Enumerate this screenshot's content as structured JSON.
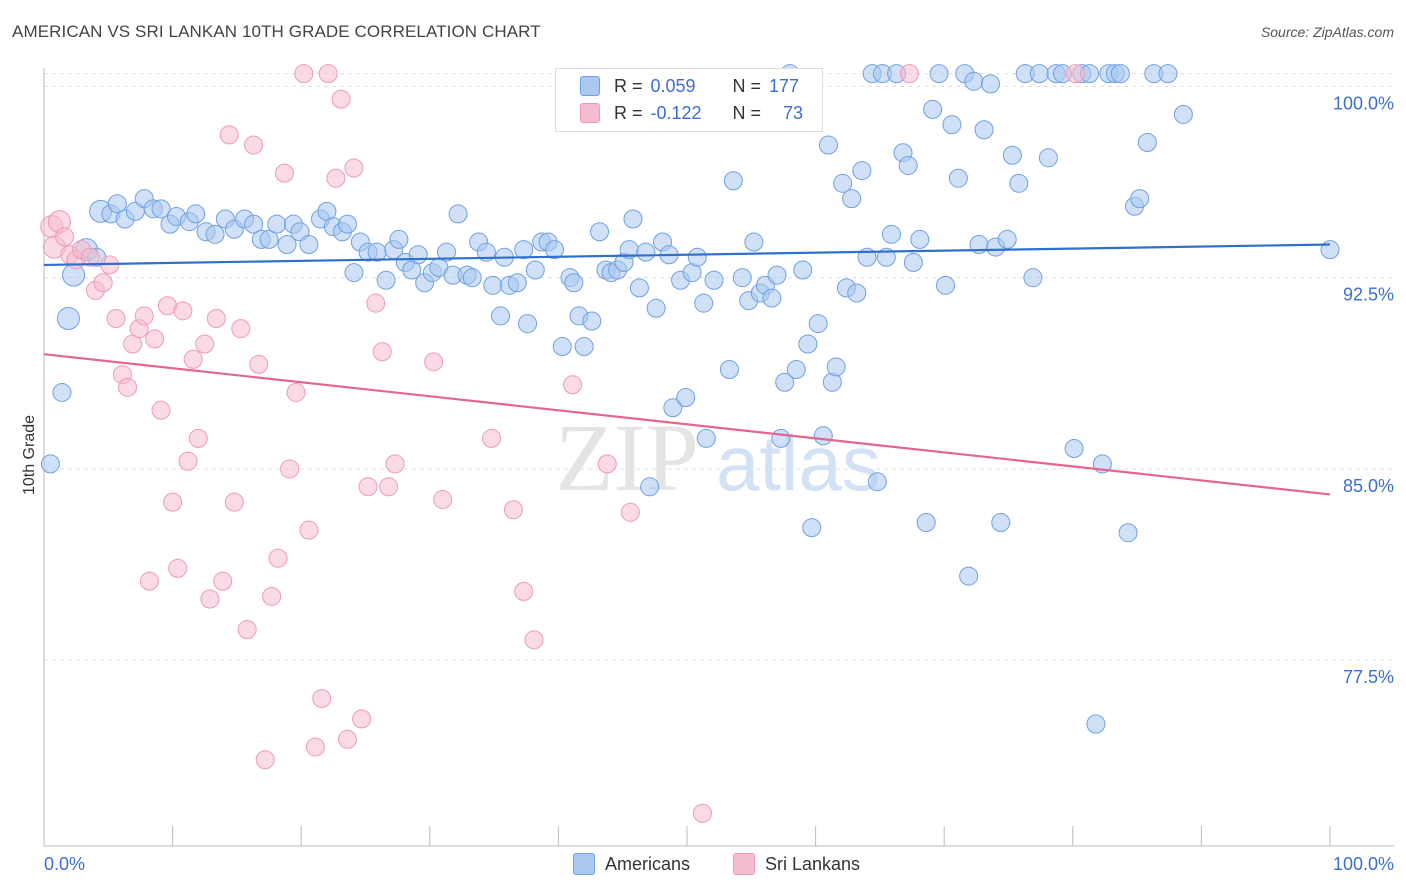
{
  "title": "AMERICAN VS SRI LANKAN 10TH GRADE CORRELATION CHART",
  "source": "Source: ZipAtlas.com",
  "legend": {
    "rows": [
      {
        "r_label": "R =",
        "r_value": "0.059",
        "n_label": "N =",
        "n_value": "177",
        "color": "#aac8f0"
      },
      {
        "r_label": "R =",
        "r_value": "-0.122",
        "n_label": "N =",
        "n_value": "73",
        "color": "#f6bccd"
      }
    ]
  },
  "bottom_legend": [
    "Americans",
    "Sri Lankans"
  ],
  "chart_data": {
    "type": "scatter",
    "ylabel": "10th Grade",
    "xlabel": "",
    "xlim": [
      0,
      100
    ],
    "ylim": [
      71,
      100.8
    ],
    "x_tick_labels": [
      "0.0%",
      "100.0%"
    ],
    "y_ticks": [
      77.5,
      85.0,
      92.5,
      100.0
    ],
    "y_tick_labels": [
      "77.5%",
      "85.0%",
      "92.5%",
      "100.0%"
    ],
    "grid": "horizontal dashed",
    "watermark": "ZIPatlas",
    "series": [
      {
        "name": "Americans",
        "color": "#6fa0e0",
        "fill": "#aac8f0",
        "trend": [
          [
            0,
            93.0
          ],
          [
            100,
            93.8
          ]
        ],
        "points": [
          [
            0.5,
            85.2
          ],
          [
            1.4,
            88.0
          ],
          [
            1.9,
            90.9
          ],
          [
            2.3,
            92.6
          ],
          [
            3.3,
            93.6
          ],
          [
            4.1,
            93.3
          ],
          [
            4.4,
            95.1
          ],
          [
            5.2,
            95.0
          ],
          [
            5.7,
            95.4
          ],
          [
            6.3,
            94.8
          ],
          [
            7.1,
            95.1
          ],
          [
            7.8,
            95.6
          ],
          [
            8.5,
            95.2
          ],
          [
            9.1,
            95.2
          ],
          [
            9.8,
            94.6
          ],
          [
            10.3,
            94.9
          ],
          [
            11.3,
            94.7
          ],
          [
            11.8,
            95.0
          ],
          [
            12.6,
            94.3
          ],
          [
            13.3,
            94.2
          ],
          [
            14.1,
            94.8
          ],
          [
            14.8,
            94.4
          ],
          [
            15.6,
            94.8
          ],
          [
            16.3,
            94.6
          ],
          [
            16.9,
            94.0
          ],
          [
            17.5,
            94.0
          ],
          [
            18.1,
            94.6
          ],
          [
            18.9,
            93.8
          ],
          [
            19.4,
            94.6
          ],
          [
            19.9,
            94.3
          ],
          [
            20.6,
            93.8
          ],
          [
            21.5,
            94.8
          ],
          [
            22.0,
            95.1
          ],
          [
            22.5,
            94.5
          ],
          [
            23.2,
            94.3
          ],
          [
            23.6,
            94.6
          ],
          [
            24.1,
            92.7
          ],
          [
            24.6,
            93.9
          ],
          [
            25.2,
            93.5
          ],
          [
            25.9,
            93.5
          ],
          [
            26.6,
            92.4
          ],
          [
            27.2,
            93.6
          ],
          [
            27.6,
            94.0
          ],
          [
            28.1,
            93.1
          ],
          [
            28.6,
            92.8
          ],
          [
            29.1,
            93.4
          ],
          [
            29.6,
            92.3
          ],
          [
            30.2,
            92.7
          ],
          [
            30.7,
            92.9
          ],
          [
            31.3,
            93.5
          ],
          [
            31.8,
            92.6
          ],
          [
            32.2,
            95.0
          ],
          [
            32.9,
            92.6
          ],
          [
            33.3,
            92.5
          ],
          [
            33.8,
            93.9
          ],
          [
            34.4,
            93.5
          ],
          [
            34.9,
            92.2
          ],
          [
            35.5,
            91.0
          ],
          [
            35.8,
            93.3
          ],
          [
            36.2,
            92.2
          ],
          [
            36.8,
            92.3
          ],
          [
            37.3,
            93.6
          ],
          [
            37.6,
            90.7
          ],
          [
            38.2,
            92.8
          ],
          [
            38.7,
            93.9
          ],
          [
            39.2,
            93.9
          ],
          [
            39.7,
            93.6
          ],
          [
            40.3,
            89.8
          ],
          [
            40.9,
            92.5
          ],
          [
            41.2,
            92.3
          ],
          [
            41.6,
            91.0
          ],
          [
            42.0,
            89.8
          ],
          [
            42.6,
            90.8
          ],
          [
            43.2,
            94.3
          ],
          [
            43.7,
            92.8
          ],
          [
            44.1,
            92.7
          ],
          [
            44.6,
            92.8
          ],
          [
            45.1,
            93.1
          ],
          [
            45.5,
            93.6
          ],
          [
            45.8,
            94.8
          ],
          [
            46.3,
            92.1
          ],
          [
            46.8,
            93.5
          ],
          [
            47.1,
            84.3
          ],
          [
            47.6,
            91.3
          ],
          [
            48.1,
            93.9
          ],
          [
            48.6,
            93.4
          ],
          [
            48.9,
            87.4
          ],
          [
            49.5,
            92.4
          ],
          [
            49.9,
            87.8
          ],
          [
            50.4,
            92.7
          ],
          [
            50.8,
            93.3
          ],
          [
            51.3,
            91.5
          ],
          [
            51.5,
            86.2
          ],
          [
            52.1,
            92.4
          ],
          [
            52.8,
            98.7
          ],
          [
            53.3,
            88.9
          ],
          [
            53.6,
            96.3
          ],
          [
            53.9,
            98.6
          ],
          [
            54.3,
            92.5
          ],
          [
            54.8,
            91.6
          ],
          [
            55.2,
            93.9
          ],
          [
            55.7,
            91.9
          ],
          [
            56.1,
            92.2
          ],
          [
            56.6,
            91.7
          ],
          [
            57.0,
            92.6
          ],
          [
            57.3,
            86.2
          ],
          [
            57.6,
            88.4
          ],
          [
            58.0,
            100.5
          ],
          [
            58.5,
            88.9
          ],
          [
            59.0,
            92.8
          ],
          [
            59.4,
            89.9
          ],
          [
            59.7,
            82.7
          ],
          [
            60.2,
            90.7
          ],
          [
            60.6,
            86.3
          ],
          [
            61.0,
            97.7
          ],
          [
            61.3,
            88.4
          ],
          [
            61.6,
            89.0
          ],
          [
            62.1,
            96.2
          ],
          [
            62.4,
            92.1
          ],
          [
            62.8,
            95.6
          ],
          [
            63.2,
            91.9
          ],
          [
            63.6,
            96.7
          ],
          [
            64.0,
            93.3
          ],
          [
            64.4,
            100.5
          ],
          [
            64.8,
            84.5
          ],
          [
            65.2,
            100.5
          ],
          [
            65.5,
            93.3
          ],
          [
            65.9,
            94.2
          ],
          [
            66.3,
            100.5
          ],
          [
            66.8,
            97.4
          ],
          [
            67.2,
            96.9
          ],
          [
            67.6,
            93.1
          ],
          [
            68.1,
            94.0
          ],
          [
            68.6,
            82.9
          ],
          [
            69.1,
            99.1
          ],
          [
            69.6,
            100.5
          ],
          [
            70.1,
            92.2
          ],
          [
            70.6,
            98.5
          ],
          [
            71.1,
            96.4
          ],
          [
            71.6,
            100.5
          ],
          [
            71.9,
            80.8
          ],
          [
            72.3,
            100.2
          ],
          [
            72.7,
            93.8
          ],
          [
            73.1,
            98.3
          ],
          [
            73.6,
            100.1
          ],
          [
            74.0,
            93.7
          ],
          [
            74.4,
            82.9
          ],
          [
            74.9,
            94.0
          ],
          [
            75.3,
            97.3
          ],
          [
            75.8,
            96.2
          ],
          [
            76.3,
            100.5
          ],
          [
            76.9,
            92.5
          ],
          [
            77.4,
            100.5
          ],
          [
            78.1,
            97.2
          ],
          [
            78.7,
            100.5
          ],
          [
            79.2,
            100.5
          ],
          [
            80.1,
            85.8
          ],
          [
            80.7,
            100.5
          ],
          [
            81.3,
            100.5
          ],
          [
            81.8,
            75.0
          ],
          [
            82.3,
            85.2
          ],
          [
            82.8,
            100.5
          ],
          [
            83.3,
            100.5
          ],
          [
            83.7,
            100.5
          ],
          [
            84.3,
            82.5
          ],
          [
            84.8,
            95.3
          ],
          [
            85.2,
            95.6
          ],
          [
            85.8,
            97.8
          ],
          [
            86.3,
            100.5
          ],
          [
            87.4,
            100.5
          ],
          [
            88.6,
            98.9
          ],
          [
            100.0,
            93.6
          ]
        ]
      },
      {
        "name": "Sri Lankans",
        "color": "#ee9ab6",
        "fill": "#f6bccd",
        "trend": [
          [
            0,
            89.5
          ],
          [
            100,
            84.0
          ]
        ],
        "points": [
          [
            0.6,
            94.5
          ],
          [
            0.8,
            93.7
          ],
          [
            1.2,
            94.7
          ],
          [
            1.6,
            94.1
          ],
          [
            2.0,
            93.4
          ],
          [
            2.5,
            93.2
          ],
          [
            2.9,
            93.6
          ],
          [
            3.6,
            93.3
          ],
          [
            4.0,
            92.0
          ],
          [
            4.6,
            92.3
          ],
          [
            5.1,
            93.0
          ],
          [
            5.6,
            90.9
          ],
          [
            6.1,
            88.7
          ],
          [
            6.5,
            88.2
          ],
          [
            6.9,
            89.9
          ],
          [
            7.4,
            90.5
          ],
          [
            7.8,
            91.0
          ],
          [
            8.2,
            80.6
          ],
          [
            8.6,
            90.1
          ],
          [
            9.1,
            87.3
          ],
          [
            9.6,
            91.4
          ],
          [
            10.0,
            83.7
          ],
          [
            10.4,
            81.1
          ],
          [
            10.8,
            91.2
          ],
          [
            11.2,
            85.3
          ],
          [
            11.6,
            89.3
          ],
          [
            12.0,
            86.2
          ],
          [
            12.5,
            89.9
          ],
          [
            12.9,
            79.9
          ],
          [
            13.4,
            90.9
          ],
          [
            13.9,
            80.6
          ],
          [
            14.4,
            98.1
          ],
          [
            14.8,
            83.7
          ],
          [
            15.3,
            90.5
          ],
          [
            15.8,
            78.7
          ],
          [
            16.3,
            97.7
          ],
          [
            16.7,
            89.1
          ],
          [
            17.2,
            73.6
          ],
          [
            17.7,
            80.0
          ],
          [
            18.2,
            81.5
          ],
          [
            18.7,
            96.6
          ],
          [
            19.1,
            85.0
          ],
          [
            19.6,
            88.0
          ],
          [
            20.2,
            100.5
          ],
          [
            20.6,
            82.6
          ],
          [
            21.1,
            74.1
          ],
          [
            21.6,
            76.0
          ],
          [
            22.1,
            100.5
          ],
          [
            22.7,
            96.4
          ],
          [
            23.1,
            99.5
          ],
          [
            23.6,
            74.4
          ],
          [
            24.1,
            96.8
          ],
          [
            24.7,
            75.2
          ],
          [
            25.2,
            84.3
          ],
          [
            25.8,
            91.5
          ],
          [
            26.3,
            89.6
          ],
          [
            26.8,
            84.3
          ],
          [
            27.3,
            85.2
          ],
          [
            30.3,
            89.2
          ],
          [
            31.0,
            83.8
          ],
          [
            34.8,
            86.2
          ],
          [
            36.5,
            83.4
          ],
          [
            37.3,
            80.2
          ],
          [
            38.1,
            78.3
          ],
          [
            41.1,
            88.3
          ],
          [
            43.8,
            85.2
          ],
          [
            45.6,
            83.3
          ],
          [
            51.2,
            71.5
          ],
          [
            67.3,
            100.5
          ],
          [
            80.2,
            100.5
          ]
        ]
      }
    ]
  }
}
